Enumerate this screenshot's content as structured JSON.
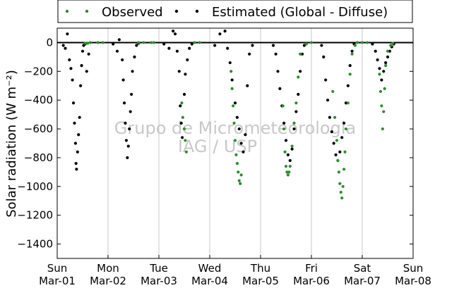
{
  "chart_data": {
    "type": "scatter",
    "ylabel": "Solar radiation (W m⁻²)",
    "ylim": [
      -1500,
      100
    ],
    "xlim": [
      0,
      7
    ],
    "y_ticks": [
      0,
      -200,
      -400,
      -600,
      -800,
      -1000,
      -1200,
      -1400
    ],
    "x_ticks": [
      {
        "x": 0,
        "day": "Sun",
        "date": "Mar-01"
      },
      {
        "x": 1,
        "day": "Mon",
        "date": "Mar-02"
      },
      {
        "x": 2,
        "day": "Tue",
        "date": "Mar-03"
      },
      {
        "x": 3,
        "day": "Wed",
        "date": "Mar-04"
      },
      {
        "x": 4,
        "day": "Thu",
        "date": "Mar-05"
      },
      {
        "x": 5,
        "day": "Fri",
        "date": "Mar-06"
      },
      {
        "x": 6,
        "day": "Sat",
        "date": "Mar-07"
      },
      {
        "x": 7,
        "day": "Sun",
        "date": "Mar-08"
      }
    ],
    "grid": "vertical",
    "legend_position": "top",
    "watermark": [
      "Grupo de Micrometeorologia",
      "IAG / USP"
    ],
    "series": [
      {
        "name": "Estimated (Global - Diffuse)",
        "color": "#000000",
        "points": [
          [
            0.12,
            -20
          ],
          [
            0.16,
            -40
          ],
          [
            0.2,
            60
          ],
          [
            0.24,
            -120
          ],
          [
            0.27,
            -180
          ],
          [
            0.3,
            -260
          ],
          [
            0.32,
            -420
          ],
          [
            0.34,
            -560
          ],
          [
            0.36,
            -700
          ],
          [
            0.37,
            -840
          ],
          [
            0.38,
            -880
          ],
          [
            0.4,
            -760
          ],
          [
            0.42,
            -640
          ],
          [
            0.44,
            -520
          ],
          [
            0.46,
            -300
          ],
          [
            0.48,
            -160
          ],
          [
            0.5,
            -60
          ],
          [
            0.52,
            -20
          ],
          [
            0.55,
            -10
          ],
          [
            0.58,
            -200
          ],
          [
            0.62,
            -80
          ],
          [
            1.1,
            -10
          ],
          [
            1.18,
            -60
          ],
          [
            1.22,
            20
          ],
          [
            1.28,
            -120
          ],
          [
            1.3,
            -260
          ],
          [
            1.32,
            -420
          ],
          [
            1.34,
            -560
          ],
          [
            1.36,
            -680
          ],
          [
            1.38,
            -800
          ],
          [
            1.4,
            -720
          ],
          [
            1.42,
            -600
          ],
          [
            1.44,
            -480
          ],
          [
            1.46,
            -360
          ],
          [
            1.48,
            -200
          ],
          [
            1.52,
            -100
          ],
          [
            1.56,
            -20
          ],
          [
            1.6,
            -5
          ],
          [
            2.1,
            -10
          ],
          [
            2.2,
            -40
          ],
          [
            2.28,
            80
          ],
          [
            2.32,
            60
          ],
          [
            2.36,
            -60
          ],
          [
            2.4,
            -200
          ],
          [
            2.42,
            -440
          ],
          [
            2.44,
            -560
          ],
          [
            2.46,
            -660
          ],
          [
            2.5,
            -360
          ],
          [
            2.52,
            -220
          ],
          [
            2.56,
            -120
          ],
          [
            2.6,
            -40
          ],
          [
            2.65,
            -10
          ],
          [
            3.1,
            -20
          ],
          [
            3.2,
            60
          ],
          [
            3.3,
            80
          ],
          [
            3.35,
            -40
          ],
          [
            3.4,
            -140
          ],
          [
            3.44,
            -260
          ],
          [
            3.5,
            -420
          ],
          [
            3.54,
            -520
          ],
          [
            3.58,
            -600
          ],
          [
            3.62,
            -700
          ],
          [
            3.66,
            -760
          ],
          [
            3.7,
            -640
          ],
          [
            3.74,
            -300
          ],
          [
            3.78,
            -80
          ],
          [
            3.84,
            -20
          ],
          [
            4.25,
            -20
          ],
          [
            4.3,
            -80
          ],
          [
            4.34,
            -200
          ],
          [
            4.38,
            -320
          ],
          [
            4.42,
            -440
          ],
          [
            4.46,
            -560
          ],
          [
            4.5,
            -680
          ],
          [
            4.54,
            -780
          ],
          [
            4.58,
            -820
          ],
          [
            4.62,
            -740
          ],
          [
            4.66,
            -600
          ],
          [
            4.7,
            -480
          ],
          [
            4.74,
            -360
          ],
          [
            4.78,
            -200
          ],
          [
            4.82,
            -80
          ],
          [
            4.86,
            -20
          ],
          [
            5.2,
            -20
          ],
          [
            5.24,
            -100
          ],
          [
            5.28,
            -260
          ],
          [
            5.32,
            -400
          ],
          [
            5.36,
            -520
          ],
          [
            5.4,
            -620
          ],
          [
            5.44,
            -700
          ],
          [
            5.48,
            -780
          ],
          [
            5.52,
            -820
          ],
          [
            5.56,
            -760
          ],
          [
            5.6,
            -660
          ],
          [
            5.64,
            -560
          ],
          [
            5.68,
            -420
          ],
          [
            5.72,
            -300
          ],
          [
            5.76,
            -160
          ],
          [
            5.8,
            -60
          ],
          [
            5.84,
            -10
          ],
          [
            6.2,
            -10
          ],
          [
            6.26,
            -60
          ],
          [
            6.3,
            -120
          ],
          [
            6.34,
            -180
          ],
          [
            6.38,
            -260
          ],
          [
            6.42,
            -200
          ],
          [
            6.46,
            -140
          ],
          [
            6.5,
            -100
          ],
          [
            6.54,
            -60
          ],
          [
            6.58,
            -30
          ],
          [
            6.62,
            -10
          ]
        ]
      },
      {
        "name": "Observed",
        "color": "#2e8b2e",
        "points": [
          [
            0.55,
            -5
          ],
          [
            0.6,
            -5
          ],
          [
            0.65,
            0
          ],
          [
            0.8,
            0
          ],
          [
            0.9,
            0
          ],
          [
            1.6,
            0
          ],
          [
            1.7,
            0
          ],
          [
            1.85,
            0
          ],
          [
            1.9,
            0
          ],
          [
            2.45,
            -420
          ],
          [
            2.47,
            -520
          ],
          [
            2.5,
            -600
          ],
          [
            2.52,
            -680
          ],
          [
            2.54,
            -760
          ],
          [
            2.7,
            0
          ],
          [
            2.8,
            0
          ],
          [
            3.42,
            -200
          ],
          [
            3.44,
            -320
          ],
          [
            3.46,
            -440
          ],
          [
            3.48,
            -560
          ],
          [
            3.5,
            -680
          ],
          [
            3.52,
            -780
          ],
          [
            3.54,
            -840
          ],
          [
            3.56,
            -900
          ],
          [
            3.58,
            -960
          ],
          [
            3.6,
            -980
          ],
          [
            3.62,
            -920
          ],
          [
            4.44,
            -440
          ],
          [
            4.46,
            -600
          ],
          [
            4.48,
            -760
          ],
          [
            4.5,
            -860
          ],
          [
            4.52,
            -900
          ],
          [
            4.54,
            -920
          ],
          [
            4.56,
            -900
          ],
          [
            4.58,
            -860
          ],
          [
            4.62,
            -720
          ],
          [
            4.66,
            -560
          ],
          [
            4.7,
            -420
          ],
          [
            4.74,
            -240
          ],
          [
            4.78,
            -80
          ],
          [
            4.9,
            -10
          ],
          [
            5.0,
            0
          ],
          [
            5.42,
            -340
          ],
          [
            5.46,
            -520
          ],
          [
            5.5,
            -680
          ],
          [
            5.52,
            -820
          ],
          [
            5.54,
            -900
          ],
          [
            5.56,
            -980
          ],
          [
            5.58,
            -1040
          ],
          [
            5.6,
            -1080
          ],
          [
            5.62,
            -1000
          ],
          [
            5.64,
            -880
          ],
          [
            5.66,
            -760
          ],
          [
            5.68,
            -600
          ],
          [
            5.72,
            -420
          ],
          [
            5.76,
            -220
          ],
          [
            5.8,
            -80
          ],
          [
            5.86,
            -20
          ],
          [
            5.9,
            0
          ],
          [
            6.0,
            0
          ],
          [
            6.1,
            0
          ],
          [
            6.34,
            -220
          ],
          [
            6.36,
            -340
          ],
          [
            6.38,
            -440
          ],
          [
            6.4,
            -600
          ],
          [
            6.42,
            -480
          ],
          [
            6.44,
            -320
          ],
          [
            6.46,
            -160
          ],
          [
            6.5,
            -60
          ],
          [
            6.56,
            -20
          ],
          [
            6.6,
            -5
          ]
        ]
      }
    ]
  }
}
